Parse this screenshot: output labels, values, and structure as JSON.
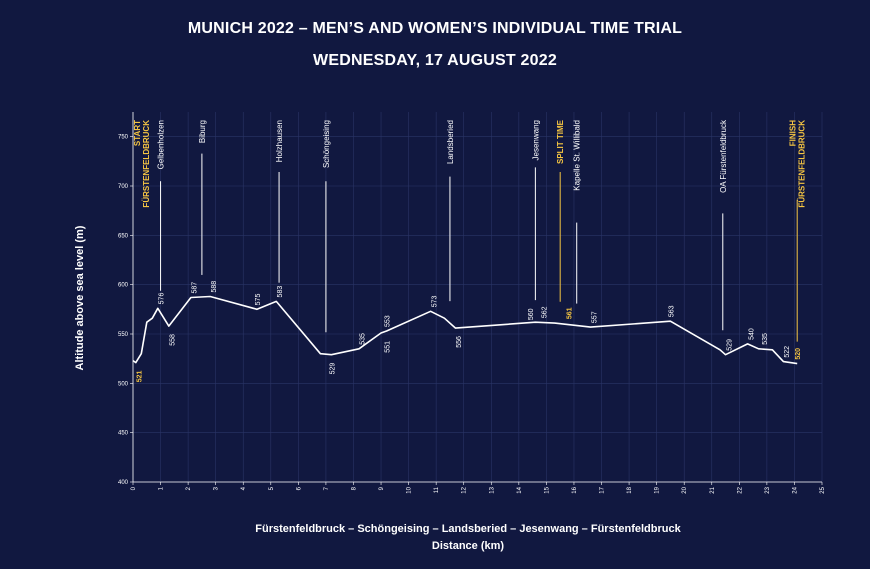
{
  "title": "MUNICH 2022 – MEN’S AND WOMEN’S INDIVIDUAL TIME TRIAL",
  "subtitle": "WEDNESDAY, 17 AUGUST 2022",
  "colors": {
    "background": "#111840",
    "line": "#ffffff",
    "grid": "#2a3466",
    "highlight": "#f5c542"
  },
  "chart_data": {
    "type": "line",
    "title": "MUNICH 2022 – MEN’S AND WOMEN’S INDIVIDUAL TIME TRIAL",
    "subtitle": "WEDNESDAY, 17 AUGUST 2022",
    "route": "Fürstenfeldbruck – Schöngeising – Landsberied – Jesenwang – Fürstenfeldbruck",
    "xlabel": "Distance (km)",
    "ylabel": "Altitude above sea level (m)",
    "xlim": [
      0,
      25
    ],
    "ylim": [
      400,
      775
    ],
    "xticks": [
      0,
      1,
      2,
      3,
      4,
      5,
      6,
      7,
      8,
      9,
      10,
      11,
      12,
      13,
      14,
      15,
      16,
      17,
      18,
      19,
      20,
      21,
      22,
      23,
      24,
      25
    ],
    "yticks": [
      400,
      450,
      500,
      550,
      600,
      650,
      700,
      750
    ],
    "grid": true,
    "profile": [
      {
        "x": 0,
        "y": 523
      },
      {
        "x": 0.1,
        "y": 521
      },
      {
        "x": 0.3,
        "y": 530
      },
      {
        "x": 0.5,
        "y": 562
      },
      {
        "x": 0.7,
        "y": 566
      },
      {
        "x": 0.9,
        "y": 576
      },
      {
        "x": 1.3,
        "y": 558
      },
      {
        "x": 2.1,
        "y": 587
      },
      {
        "x": 2.8,
        "y": 588
      },
      {
        "x": 4.5,
        "y": 575
      },
      {
        "x": 5.2,
        "y": 583
      },
      {
        "x": 6.8,
        "y": 530
      },
      {
        "x": 7.2,
        "y": 529
      },
      {
        "x": 8.2,
        "y": 535
      },
      {
        "x": 9.0,
        "y": 551
      },
      {
        "x": 9.2,
        "y": 553
      },
      {
        "x": 10.8,
        "y": 573
      },
      {
        "x": 11.3,
        "y": 566
      },
      {
        "x": 11.7,
        "y": 556
      },
      {
        "x": 14.6,
        "y": 562
      },
      {
        "x": 15.3,
        "y": 561
      },
      {
        "x": 16.6,
        "y": 557
      },
      {
        "x": 19.5,
        "y": 563
      },
      {
        "x": 21.3,
        "y": 534
      },
      {
        "x": 21.5,
        "y": 529
      },
      {
        "x": 22.3,
        "y": 540
      },
      {
        "x": 22.7,
        "y": 535
      },
      {
        "x": 23.2,
        "y": 534
      },
      {
        "x": 23.6,
        "y": 522
      },
      {
        "x": 24.1,
        "y": 520
      }
    ],
    "altitude_labels": [
      {
        "x": 0.2,
        "y": 521,
        "text": "521",
        "pos": "below",
        "highlight": true
      },
      {
        "x": 1.0,
        "y": 576,
        "text": "576",
        "pos": "above"
      },
      {
        "x": 1.4,
        "y": 558,
        "text": "558",
        "pos": "below"
      },
      {
        "x": 2.2,
        "y": 587,
        "text": "587",
        "pos": "above"
      },
      {
        "x": 2.9,
        "y": 588,
        "text": "588",
        "pos": "above"
      },
      {
        "x": 4.5,
        "y": 575,
        "text": "575",
        "pos": "above"
      },
      {
        "x": 5.3,
        "y": 583,
        "text": "583",
        "pos": "above"
      },
      {
        "x": 7.2,
        "y": 529,
        "text": "529",
        "pos": "below"
      },
      {
        "x": 8.3,
        "y": 535,
        "text": "535",
        "pos": "above"
      },
      {
        "x": 9.2,
        "y": 553,
        "text": "553",
        "pos": "above"
      },
      {
        "x": 9.2,
        "y": 551,
        "text": "551",
        "pos": "below"
      },
      {
        "x": 10.9,
        "y": 573,
        "text": "573",
        "pos": "above"
      },
      {
        "x": 11.8,
        "y": 556,
        "text": "556",
        "pos": "below"
      },
      {
        "x": 14.4,
        "y": 560,
        "text": "560",
        "pos": "above"
      },
      {
        "x": 14.9,
        "y": 562,
        "text": "562",
        "pos": "above"
      },
      {
        "x": 15.8,
        "y": 561,
        "text": "561",
        "pos": "above",
        "highlight": true
      },
      {
        "x": 16.7,
        "y": 557,
        "text": "557",
        "pos": "above"
      },
      {
        "x": 19.5,
        "y": 563,
        "text": "563",
        "pos": "above"
      },
      {
        "x": 21.6,
        "y": 529,
        "text": "529",
        "pos": "above"
      },
      {
        "x": 22.4,
        "y": 540,
        "text": "540",
        "pos": "above"
      },
      {
        "x": 22.9,
        "y": 535,
        "text": "535",
        "pos": "above"
      },
      {
        "x": 23.7,
        "y": 522,
        "text": "522",
        "pos": "above"
      },
      {
        "x": 24.1,
        "y": 520,
        "text": "520",
        "pos": "above",
        "highlight": true
      }
    ],
    "landmarks": [
      {
        "x": 0.3,
        "lines": [
          "START",
          "FÜRSTENFELDBRUCK"
        ],
        "highlight": true,
        "stick": false
      },
      {
        "x": 1.0,
        "lines": [
          "Gelbenholzen"
        ],
        "stick": true
      },
      {
        "x": 2.5,
        "lines": [
          "Biburg"
        ],
        "stick": true
      },
      {
        "x": 5.3,
        "lines": [
          "Holzhausen"
        ],
        "stick": true
      },
      {
        "x": 7.0,
        "lines": [
          "Schöngeising"
        ],
        "stick": true
      },
      {
        "x": 11.5,
        "lines": [
          "Landsberied"
        ],
        "stick": true
      },
      {
        "x": 14.6,
        "lines": [
          "Jesenwang"
        ],
        "stick": true
      },
      {
        "x": 15.5,
        "lines": [
          "SPLIT TIME"
        ],
        "highlight": true,
        "stick": true
      },
      {
        "x": 16.1,
        "lines": [
          "Kapelle St. Willibald"
        ],
        "stick": true
      },
      {
        "x": 21.4,
        "lines": [
          "OA Fürstenfeldbruck"
        ],
        "stick": true
      },
      {
        "x": 24.1,
        "lines": [
          "FINISH",
          "FÜRSTENFELDBRUCK"
        ],
        "highlight": true,
        "stick": true
      }
    ]
  }
}
